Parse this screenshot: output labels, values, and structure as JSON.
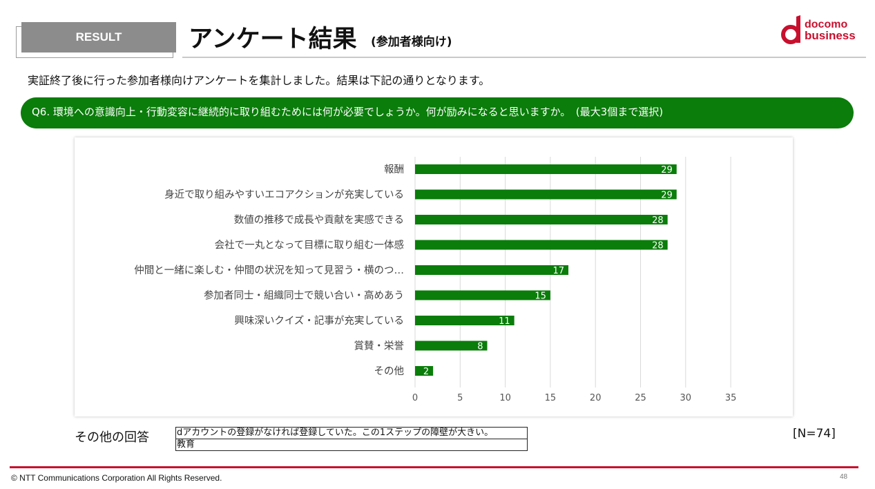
{
  "header": {
    "section_tab": "RESULT",
    "title": "アンケート結果",
    "subtitle": "(参加者様向け)"
  },
  "logo": {
    "line1": "docomo",
    "line2": "business",
    "color": "#c8102e"
  },
  "intro": "実証終了後に行った参加者様向けアンケートを集計しました。結果は下記の通りとなります。",
  "question": "Q6. 環境への意識向上・行動変容に継続的に取り組むためには何が必要でしょうか。何が励みになると思いますか。　(最大3個まで選択)",
  "chart_data": {
    "type": "bar",
    "orientation": "horizontal",
    "categories": [
      "報酬",
      "身近で取り組みやすいエコアクションが充実している",
      "数値の推移で成長や貢献を実感できる",
      "会社で一丸となって目標に取り組む一体感",
      "仲間と一緒に楽しむ・仲間の状況を知って見習う・横のつ…",
      "参加者同士・組織同士で競い合い・高めあう",
      "興味深いクイズ・記事が充実している",
      "賞賛・栄誉",
      "その他"
    ],
    "values": [
      29,
      29,
      28,
      28,
      17,
      15,
      11,
      8,
      2
    ],
    "xlim": [
      0,
      35
    ],
    "xticks": [
      0,
      5,
      10,
      15,
      20,
      25,
      30,
      35
    ],
    "grid": true,
    "data_labels": true,
    "bar_color": "#0a7d0a",
    "label_color": "#ffffff"
  },
  "others": {
    "label": "その他の回答",
    "rows": [
      "dアカウントの登録がなければ登録していた。この1ステップの障壁が大きい。",
      "教育"
    ]
  },
  "sample_size": "[N=74]",
  "footer": {
    "copyright": "© NTT Communications Corporation All Rights Reserved.",
    "page_number": "48",
    "rule_color": "#c8102e"
  }
}
